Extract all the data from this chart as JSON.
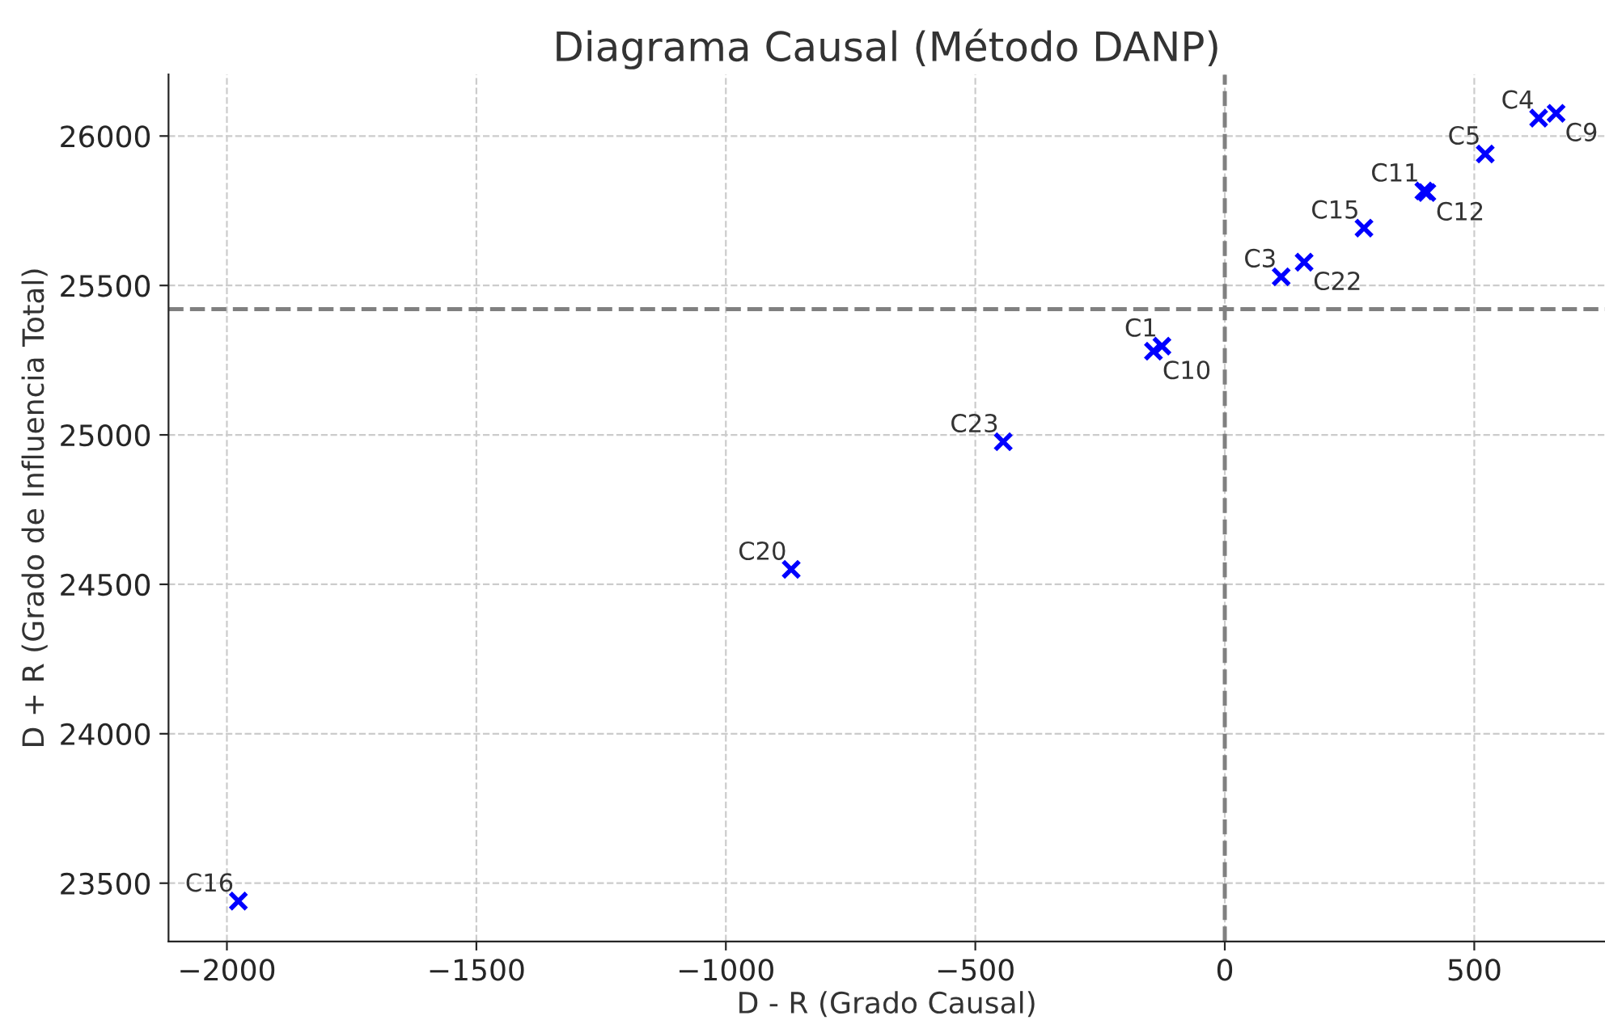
{
  "chart_data": {
    "type": "scatter",
    "title": "Diagrama Causal (Método DANP)",
    "xlabel": "D - R (Grado Causal)",
    "ylabel": "D + R (Grado de Influencia Total)",
    "series": [
      {
        "color": "#0000ff",
        "x": [
          -1977,
          -869,
          -444,
          -126,
          -143,
          113,
          159,
          279,
          399,
          405,
          522,
          629,
          664
        ],
        "values": [
          23440,
          24550,
          24977,
          25297,
          25280,
          25529,
          25578,
          25692,
          25816,
          25811,
          25940,
          26060,
          26076
        ]
      }
    ],
    "annotations": [
      {
        "text": "C16",
        "x": -1977,
        "y": 23440
      },
      {
        "text": "C20",
        "x": -869,
        "y": 24550
      },
      {
        "text": "C23",
        "x": -444,
        "y": 24977
      },
      {
        "text": "C1",
        "x": -126,
        "y": 25297
      },
      {
        "text": "C10",
        "x": -143,
        "y": 25280
      },
      {
        "text": "C3",
        "x": 113,
        "y": 25529
      },
      {
        "text": "C22",
        "x": 159,
        "y": 25578
      },
      {
        "text": "C15",
        "x": 279,
        "y": 25692
      },
      {
        "text": "C11",
        "x": 399,
        "y": 25816
      },
      {
        "text": "C12",
        "x": 405,
        "y": 25811
      },
      {
        "text": "C5",
        "x": 522,
        "y": 25940
      },
      {
        "text": "C4",
        "x": 629,
        "y": 26060
      },
      {
        "text": "C9",
        "x": 664,
        "y": 26076
      }
    ],
    "ref_lines": [
      {
        "axis": "x",
        "value": 0,
        "color": "#808080",
        "line_style": "dashed"
      },
      {
        "axis": "y",
        "value": 25421,
        "color": "#808080",
        "line_style": "dashed"
      }
    ],
    "xlim": [
      -2117,
      762
    ],
    "ylim": [
      23305,
      26206
    ],
    "xticks": [
      {
        "value": -2000,
        "label": "−2000"
      },
      {
        "value": -1500,
        "label": "−1500"
      },
      {
        "value": -1000,
        "label": "−1000"
      },
      {
        "value": -500,
        "label": "−500"
      },
      0,
      500
    ],
    "yticks": [
      23500,
      24000,
      24500,
      25000,
      25500,
      26000
    ],
    "grid": true,
    "marker": "cross"
  }
}
